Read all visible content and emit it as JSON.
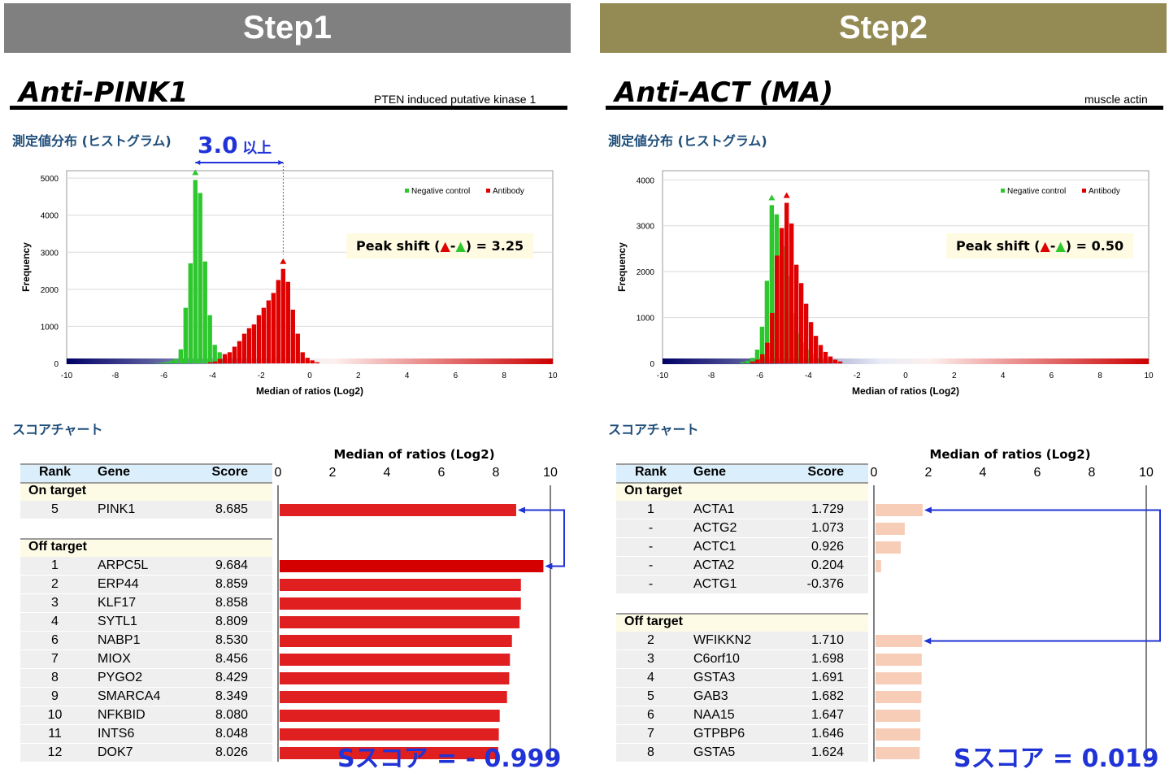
{
  "panels": [
    {
      "step": "Step1",
      "banner_color": "#808080",
      "antibody": "Anti-PINK1",
      "protein": "PTEN induced putative kinase 1",
      "hist_section_label": "測定値分布 (ヒストグラム)",
      "threshold_value": "3.0",
      "threshold_suffix": "以上",
      "peak_shift_prefix": "Peak shift (",
      "peak_shift_value": ") = 3.25",
      "score_section_label": "スコアチャート",
      "s_score": "Sスコア = - 0.999",
      "table": {
        "headers": [
          "Rank",
          "Gene",
          "Score"
        ],
        "on_target_label": "On target",
        "off_target_label": "Off target",
        "on_target": [
          {
            "rank": "5",
            "gene": "PINK1",
            "score": "8.685"
          }
        ],
        "off_target": [
          {
            "rank": "1",
            "gene": "ARPC5L",
            "score": "9.684"
          },
          {
            "rank": "2",
            "gene": "ERP44",
            "score": "8.859"
          },
          {
            "rank": "3",
            "gene": "KLF17",
            "score": "8.858"
          },
          {
            "rank": "4",
            "gene": "SYTL1",
            "score": "8.809"
          },
          {
            "rank": "6",
            "gene": "NABP1",
            "score": "8.530"
          },
          {
            "rank": "7",
            "gene": "MIOX",
            "score": "8.456"
          },
          {
            "rank": "8",
            "gene": "PYGO2",
            "score": "8.429"
          },
          {
            "rank": "9",
            "gene": "SMARCA4",
            "score": "8.349"
          },
          {
            "rank": "10",
            "gene": "NFKBID",
            "score": "8.080"
          },
          {
            "rank": "11",
            "gene": "INTS6",
            "score": "8.048"
          },
          {
            "rank": "12",
            "gene": "DOK7",
            "score": "8.026"
          }
        ]
      }
    },
    {
      "step": "Step2",
      "banner_color": "#948a54",
      "antibody": "Anti-ACT (MA)",
      "protein": "muscle actin",
      "hist_section_label": "測定値分布 (ヒストグラム)",
      "threshold_value": "",
      "threshold_suffix": "",
      "peak_shift_prefix": "Peak shift (",
      "peak_shift_value": ") = 0.50",
      "score_section_label": "スコアチャート",
      "s_score": "Sスコア = 0.019",
      "table": {
        "headers": [
          "Rank",
          "Gene",
          "Score"
        ],
        "on_target_label": "On target",
        "off_target_label": "Off target",
        "on_target": [
          {
            "rank": "1",
            "gene": "ACTA1",
            "score": "1.729"
          },
          {
            "rank": "-",
            "gene": "ACTG2",
            "score": "1.073"
          },
          {
            "rank": "-",
            "gene": "ACTC1",
            "score": "0.926"
          },
          {
            "rank": "-",
            "gene": "ACTA2",
            "score": "0.204"
          },
          {
            "rank": "-",
            "gene": "ACTG1",
            "score": "-0.376"
          }
        ],
        "off_target": [
          {
            "rank": "2",
            "gene": "WFIKKN2",
            "score": "1.710"
          },
          {
            "rank": "3",
            "gene": "C6orf10",
            "score": "1.698"
          },
          {
            "rank": "4",
            "gene": "GSTA3",
            "score": "1.691"
          },
          {
            "rank": "5",
            "gene": "GAB3",
            "score": "1.682"
          },
          {
            "rank": "6",
            "gene": "NAA15",
            "score": "1.647"
          },
          {
            "rank": "7",
            "gene": "GTPBP6",
            "score": "1.646"
          },
          {
            "rank": "8",
            "gene": "GSTA5",
            "score": "1.624"
          }
        ]
      }
    }
  ],
  "chart_data": [
    {
      "type": "bar",
      "title": "",
      "xlabel": "Median of ratios (Log2)",
      "ylabel": "Frequency",
      "xlim": [
        -10,
        10
      ],
      "ylim": [
        0,
        5200
      ],
      "yticks": [
        0,
        1000,
        2000,
        3000,
        4000,
        5000
      ],
      "xticks": [
        -10,
        -8,
        -6,
        -4,
        -2,
        0,
        2,
        4,
        6,
        8,
        10
      ],
      "legend": "top-right",
      "series": [
        {
          "name": "Negative control",
          "color": "#2ec82e",
          "x": [
            -6.2,
            -6.0,
            -5.8,
            -5.6,
            -5.4,
            -5.2,
            -5.0,
            -4.8,
            -4.6,
            -4.4,
            -4.2,
            -4.0,
            -3.8,
            -3.6,
            -3.4,
            -3.2,
            -3.0
          ],
          "values": [
            10,
            20,
            40,
            70,
            120,
            380,
            1500,
            2700,
            4950,
            4600,
            2750,
            1300,
            500,
            300,
            110,
            50,
            20
          ]
        },
        {
          "name": "Antibody",
          "color": "#e00000",
          "x": [
            -4.2,
            -4.0,
            -3.8,
            -3.6,
            -3.4,
            -3.2,
            -3.0,
            -2.8,
            -2.6,
            -2.4,
            -2.2,
            -2.0,
            -1.8,
            -1.6,
            -1.4,
            -1.2,
            -1.0,
            -0.8,
            -0.6,
            -0.4,
            -0.2,
            0.0,
            0.2
          ],
          "values": [
            30,
            50,
            120,
            250,
            300,
            450,
            600,
            800,
            950,
            1050,
            1300,
            1500,
            1700,
            1900,
            2250,
            2550,
            2200,
            1450,
            800,
            300,
            150,
            80,
            30
          ]
        }
      ]
    },
    {
      "type": "bar",
      "title": "",
      "xlabel": "Median of ratios (Log2)",
      "ylabel": "Frequency",
      "xlim": [
        -10,
        10
      ],
      "ylim": [
        0,
        4200
      ],
      "yticks": [
        0,
        1000,
        2000,
        3000,
        4000
      ],
      "xticks": [
        -10,
        -8,
        -6,
        -4,
        -2,
        0,
        2,
        4,
        6,
        8,
        10
      ],
      "legend": "top-right",
      "series": [
        {
          "name": "Negative control",
          "color": "#2ec82e",
          "x": [
            -6.6,
            -6.4,
            -6.2,
            -6.0,
            -5.8,
            -5.6,
            -5.4,
            -5.2,
            -5.0,
            -4.8,
            -4.6,
            -4.4,
            -4.2,
            -4.0,
            -3.8,
            -3.6,
            -3.4,
            -3.2,
            -3.0
          ],
          "values": [
            30,
            60,
            120,
            300,
            800,
            1800,
            3450,
            3250,
            2950,
            2550,
            1900,
            1100,
            650,
            450,
            300,
            200,
            120,
            60,
            30
          ]
        },
        {
          "name": "Antibody",
          "color": "#e00000",
          "x": [
            -6.4,
            -6.2,
            -6.0,
            -5.8,
            -5.6,
            -5.4,
            -5.2,
            -5.0,
            -4.8,
            -4.6,
            -4.4,
            -4.2,
            -4.0,
            -3.8,
            -3.6,
            -3.4,
            -3.2,
            -3.0,
            -2.8
          ],
          "values": [
            40,
            80,
            200,
            450,
            1100,
            2350,
            2950,
            3500,
            3050,
            2150,
            1750,
            1300,
            900,
            600,
            400,
            250,
            150,
            80,
            40
          ]
        }
      ]
    },
    {
      "type": "bar",
      "orientation": "horizontal",
      "xlabel": "Median of ratios (Log2)",
      "xlim": [
        0,
        10
      ],
      "xticks": [
        0,
        2,
        4,
        6,
        8,
        10
      ],
      "categories": [
        "PINK1",
        "ARPC5L",
        "ERP44",
        "KLF17",
        "SYTL1",
        "NABP1",
        "MIOX",
        "PYGO2",
        "SMARCA4",
        "NFKBID",
        "INTS6",
        "DOK7"
      ],
      "values": [
        8.685,
        9.684,
        8.859,
        8.858,
        8.809,
        8.53,
        8.456,
        8.429,
        8.349,
        8.08,
        8.048,
        8.026
      ],
      "color": "#e02020"
    },
    {
      "type": "bar",
      "orientation": "horizontal",
      "xlabel": "Median of ratios (Log2)",
      "xlim": [
        0,
        10
      ],
      "xticks": [
        0,
        2,
        4,
        6,
        8,
        10
      ],
      "categories": [
        "ACTA1",
        "ACTG2",
        "ACTC1",
        "ACTA2",
        "ACTG1",
        "WFIKKN2",
        "C6orf10",
        "GSTA3",
        "GAB3",
        "NAA15",
        "GTPBP6",
        "GSTA5"
      ],
      "values": [
        1.729,
        1.073,
        0.926,
        0.204,
        -0.376,
        1.71,
        1.698,
        1.691,
        1.682,
        1.647,
        1.646,
        1.624
      ],
      "color": "#f8cdb8"
    }
  ]
}
